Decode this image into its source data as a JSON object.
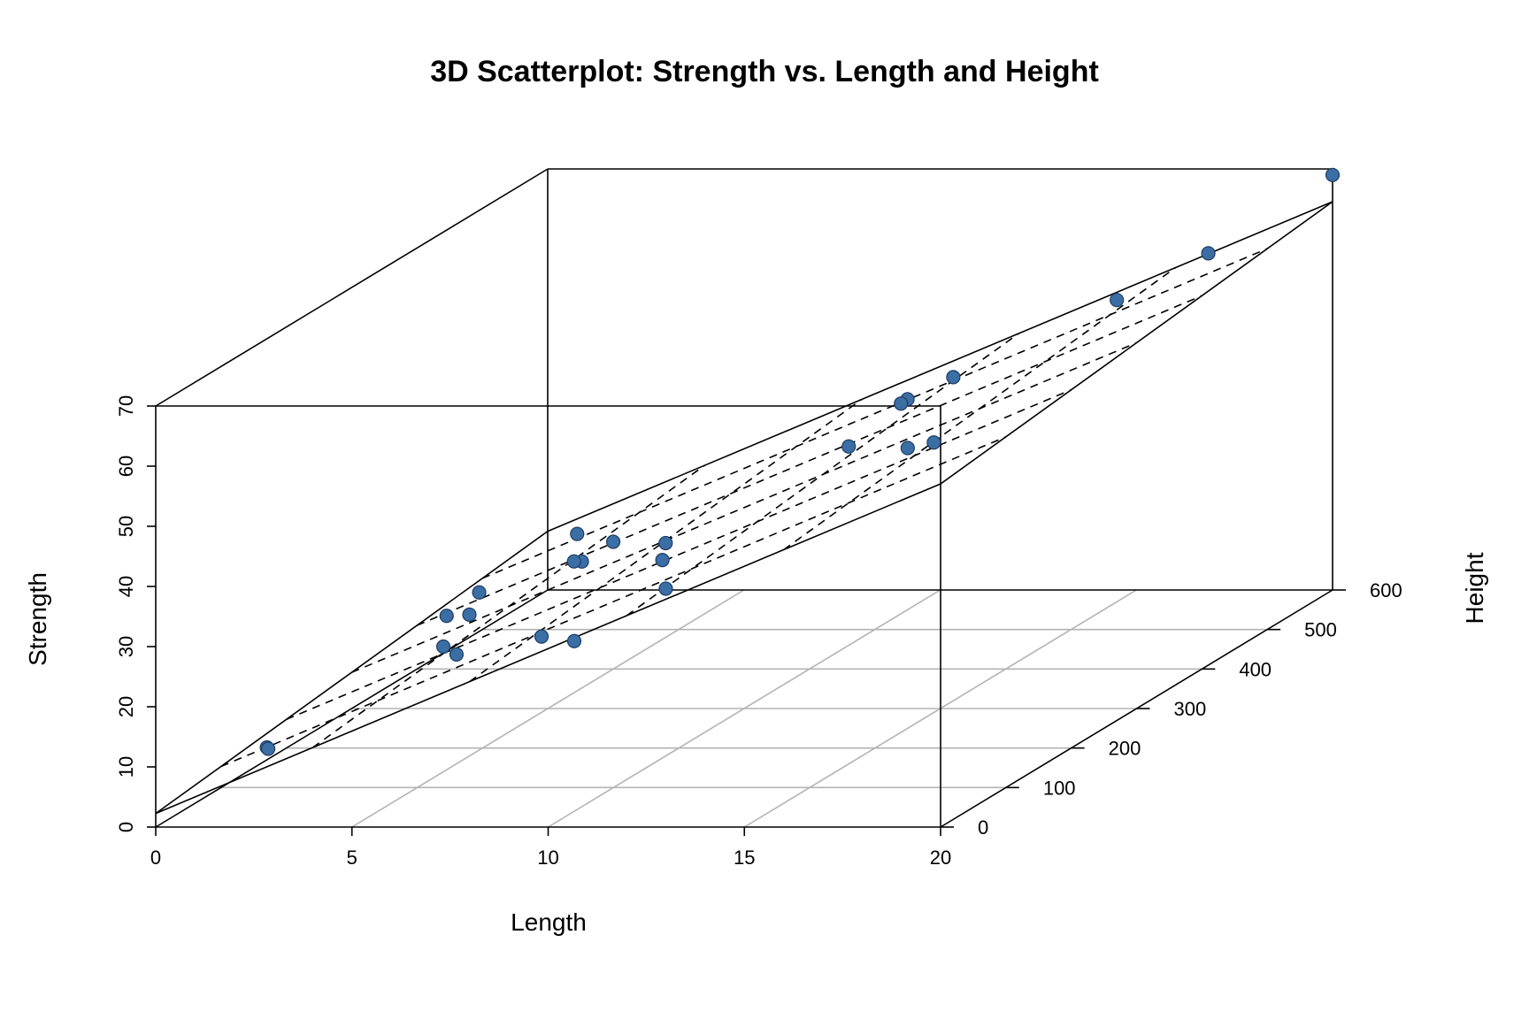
{
  "chart_data": {
    "type": "scatter",
    "title": "3D Scatterplot: Strength vs. Length and Height",
    "xlabel": "Length",
    "ylabel": "Height",
    "zlabel": "Strength",
    "xlim": [
      0,
      20
    ],
    "ylim": [
      0,
      600
    ],
    "zlim": [
      0,
      70
    ],
    "x_ticks": [
      "0",
      "5",
      "10",
      "15",
      "20"
    ],
    "y_ticks": [
      "0",
      "100",
      "200",
      "300",
      "400",
      "500",
      "600"
    ],
    "z_ticks": [
      "0",
      "10",
      "20",
      "30",
      "40",
      "50",
      "60",
      "70"
    ],
    "regression_plane": {
      "intercept": 2.26,
      "length_coef": 2.74,
      "height_coef": 0.0125
    },
    "point_color": "#3a6ea5",
    "points": [
      {
        "x": 2,
        "y": 50,
        "z": 9.95
      },
      {
        "x": 8,
        "y": 110,
        "z": 24.45
      },
      {
        "x": 11,
        "y": 120,
        "z": 31.75
      },
      {
        "x": 10,
        "y": 550,
        "z": 35.0
      },
      {
        "x": 8,
        "y": 295,
        "z": 25.02
      },
      {
        "x": 4,
        "y": 200,
        "z": 16.86
      },
      {
        "x": 2,
        "y": 375,
        "z": 14.38
      },
      {
        "x": 2,
        "y": 52,
        "z": 9.6
      },
      {
        "x": 9,
        "y": 100,
        "z": 24.35
      },
      {
        "x": 8,
        "y": 300,
        "z": 27.5
      },
      {
        "x": 4,
        "y": 412,
        "z": 17.08
      },
      {
        "x": 11,
        "y": 400,
        "z": 37.0
      },
      {
        "x": 12,
        "y": 500,
        "z": 41.95
      },
      {
        "x": 2,
        "y": 360,
        "z": 11.66
      },
      {
        "x": 4,
        "y": 205,
        "z": 21.65
      },
      {
        "x": 4,
        "y": 400,
        "z": 17.89
      },
      {
        "x": 20,
        "y": 600,
        "z": 69.0
      },
      {
        "x": 1,
        "y": 585,
        "z": 10.3
      },
      {
        "x": 10,
        "y": 540,
        "z": 34.93
      },
      {
        "x": 15,
        "y": 250,
        "z": 46.59
      },
      {
        "x": 15,
        "y": 290,
        "z": 44.88
      },
      {
        "x": 16,
        "y": 510,
        "z": 54.12
      },
      {
        "x": 17,
        "y": 590,
        "z": 56.63
      },
      {
        "x": 6,
        "y": 100,
        "z": 22.13
      },
      {
        "x": 5,
        "y": 400,
        "z": 21.15
      }
    ]
  }
}
